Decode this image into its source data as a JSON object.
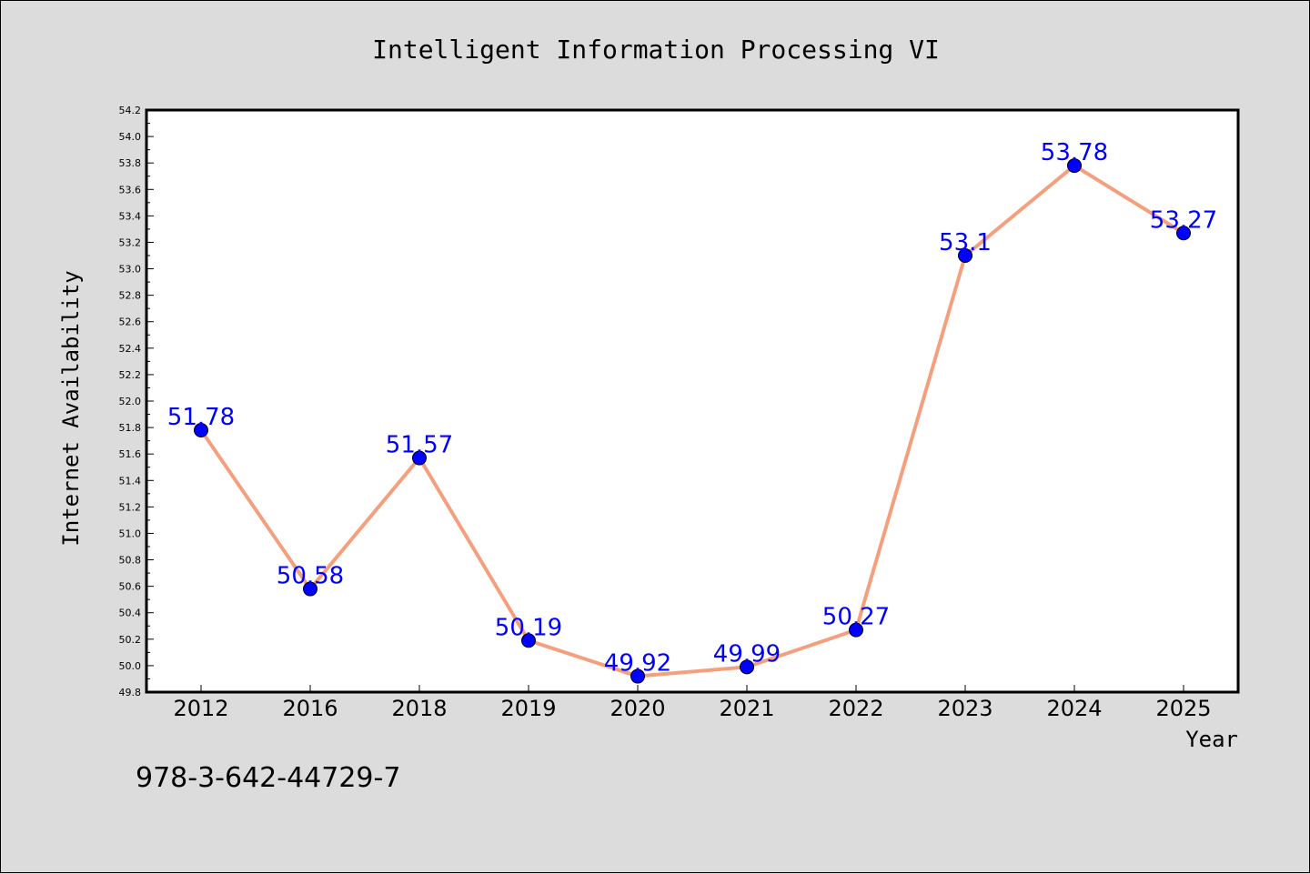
{
  "chart_data": {
    "type": "line",
    "title": "Intelligent Information Processing VI",
    "xlabel": "Year",
    "ylabel": "Internet Availability",
    "categories": [
      "2012",
      "2016",
      "2018",
      "2019",
      "2020",
      "2021",
      "2022",
      "2023",
      "2024",
      "2025"
    ],
    "series": [
      {
        "values": [
          51.78,
          50.58,
          51.57,
          50.19,
          49.92,
          49.99,
          50.27,
          53.1,
          53.78,
          53.27
        ],
        "labels": [
          "51.78",
          "50.58",
          "51.57",
          "50.19",
          "49.92",
          "49.99",
          "50.27",
          "53.1",
          "53.78",
          "53.27"
        ],
        "line_color": "#f4a07e",
        "marker_color": "#0000ff"
      }
    ],
    "ylim": [
      49.8,
      54.2
    ],
    "yticks": [
      "49.8",
      "50.0",
      "50.2",
      "50.4",
      "50.6",
      "50.8",
      "51.0",
      "51.2",
      "51.4",
      "51.6",
      "51.8",
      "52.0",
      "52.2",
      "52.4",
      "52.6",
      "52.8",
      "53.0",
      "53.2",
      "53.4",
      "53.6",
      "53.8",
      "54.0",
      "54.2"
    ],
    "grid": false,
    "legend": "none"
  },
  "footnote": "978-3-642-44729-7",
  "colors": {
    "background": "#dcdcdc",
    "plot_background": "#ffffff",
    "line": "#f4a07e",
    "marker": "#0000ff",
    "data_label": "#0000ff"
  }
}
